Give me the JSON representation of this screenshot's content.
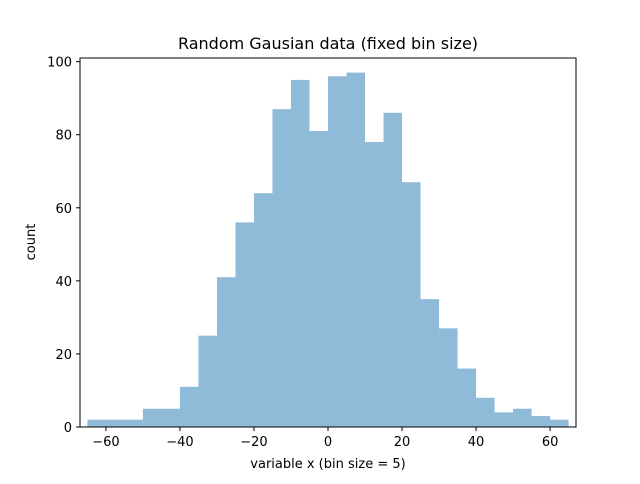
{
  "chart_data": {
    "type": "bar",
    "title": "Random Gausian data (fixed bin size)",
    "xlabel": "variable x (bin size = 5)",
    "ylabel": "count",
    "bin_size": 5,
    "bin_edges": [
      -65,
      -60,
      -55,
      -50,
      -45,
      -40,
      -35,
      -30,
      -25,
      -20,
      -15,
      -10,
      -5,
      0,
      5,
      10,
      15,
      20,
      25,
      30,
      35,
      40,
      45,
      50,
      55,
      60,
      65
    ],
    "values": [
      2,
      2,
      2,
      5,
      5,
      11,
      25,
      41,
      56,
      64,
      87,
      95,
      81,
      96,
      97,
      78,
      86,
      67,
      35,
      27,
      16,
      8,
      4,
      5,
      3,
      2
    ],
    "xlim": [
      -67,
      67
    ],
    "ylim": [
      0,
      101
    ],
    "xticks": [
      -60,
      -40,
      -20,
      0,
      20,
      40,
      60
    ],
    "yticks": [
      0,
      20,
      40,
      60,
      80,
      100
    ],
    "bar_color": "#1f77b4",
    "bar_opacity": 0.5,
    "grid": false
  }
}
